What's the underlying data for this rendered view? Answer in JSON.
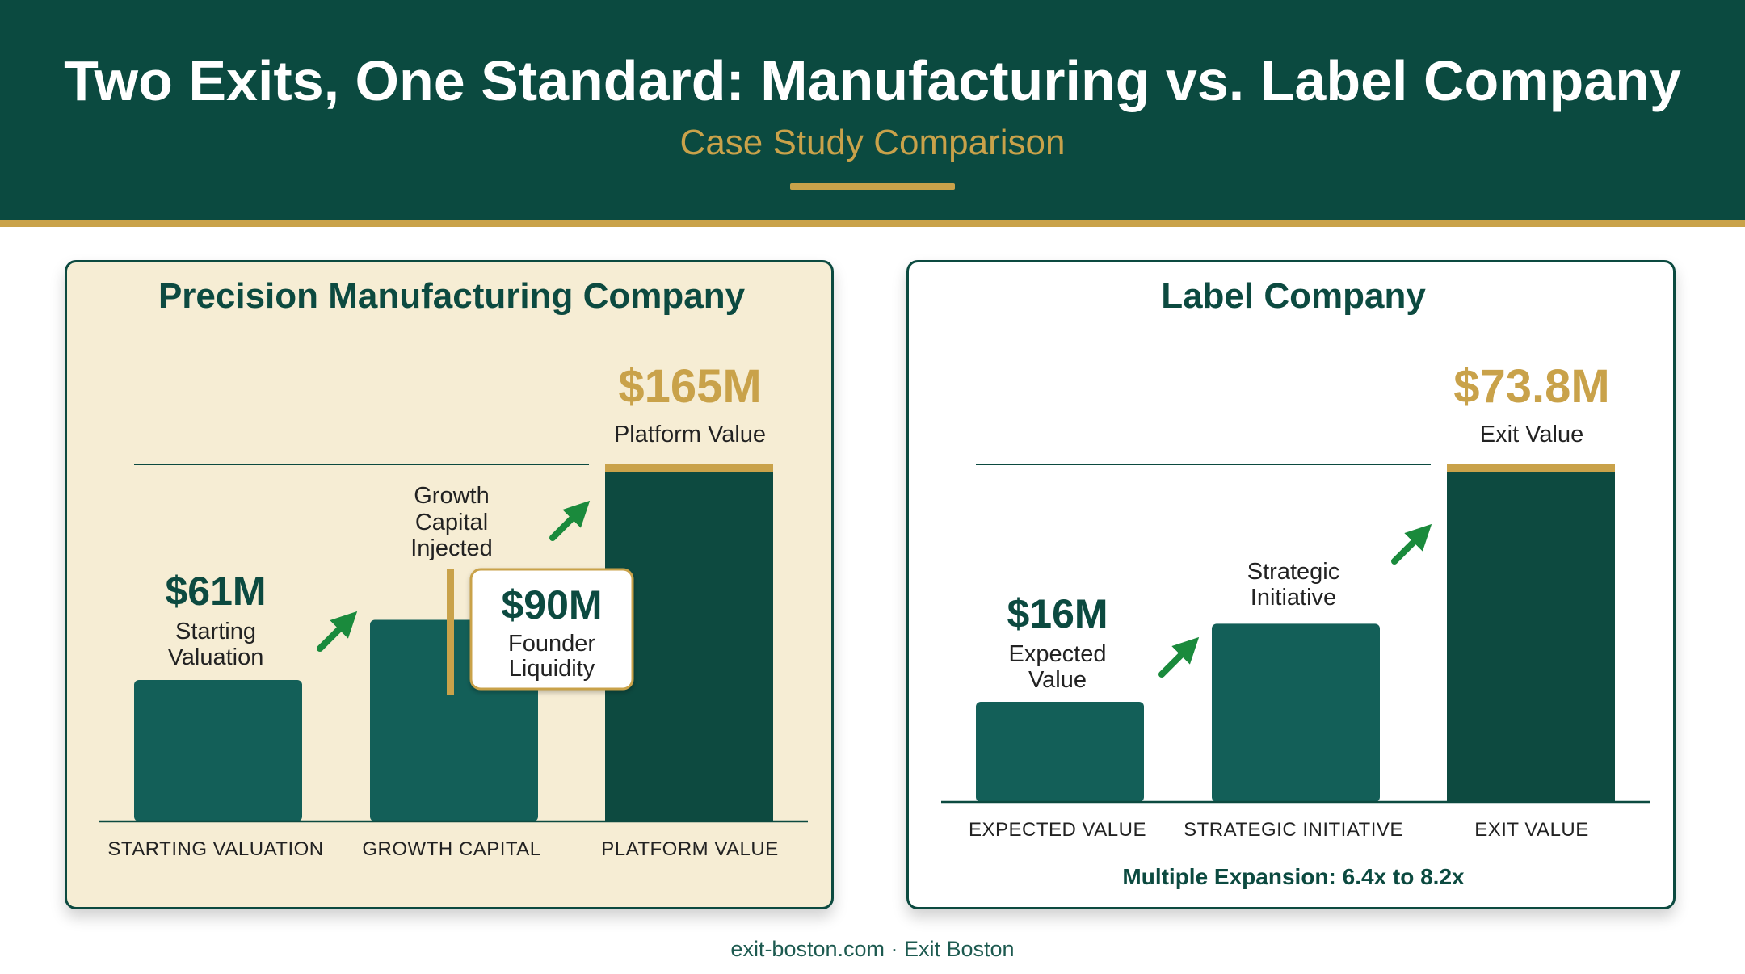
{
  "header": {
    "title": "Two Exits, One Standard: Manufacturing vs. Label Company",
    "subtitle": "Case Study Comparison"
  },
  "footer": {
    "text": "exit-boston.com · Exit Boston"
  },
  "colors": {
    "header_bg": "#0b4a40",
    "gold": "#c9a24a",
    "bar": "#135f58",
    "bar_final": "#0d4a40",
    "panel_left_bg": "#f6edd4",
    "arrow": "#1a8a3c"
  },
  "chart_data": [
    {
      "type": "bar",
      "title": "Precision Manufacturing Company",
      "categories": [
        "STARTING VALUATION",
        "GROWTH CAPITAL",
        "PLATFORM VALUE"
      ],
      "values": [
        61,
        90,
        165
      ],
      "value_labels": [
        "$61M",
        "$90M",
        "$165M"
      ],
      "bar_captions": [
        [
          "Starting",
          "Valuation"
        ],
        [
          "Founder",
          "Liquidity"
        ],
        [
          "Platform Value"
        ]
      ],
      "annotation": [
        "Growth",
        "Capital",
        "Injected"
      ]
    },
    {
      "type": "bar",
      "title": "Label Company",
      "categories": [
        "EXPECTED VALUE",
        "STRATEGIC INITIATIVE",
        "EXIT VALUE"
      ],
      "values": [
        16,
        35,
        73.8
      ],
      "value_labels": [
        "$16M",
        "",
        "$73.8M"
      ],
      "bar_captions": [
        [
          "Expected",
          "Value"
        ],
        [
          "Strategic",
          "Initiative"
        ],
        [
          "Exit Value"
        ]
      ],
      "note": "Multiple Expansion: 6.4x to 8.2x"
    }
  ]
}
